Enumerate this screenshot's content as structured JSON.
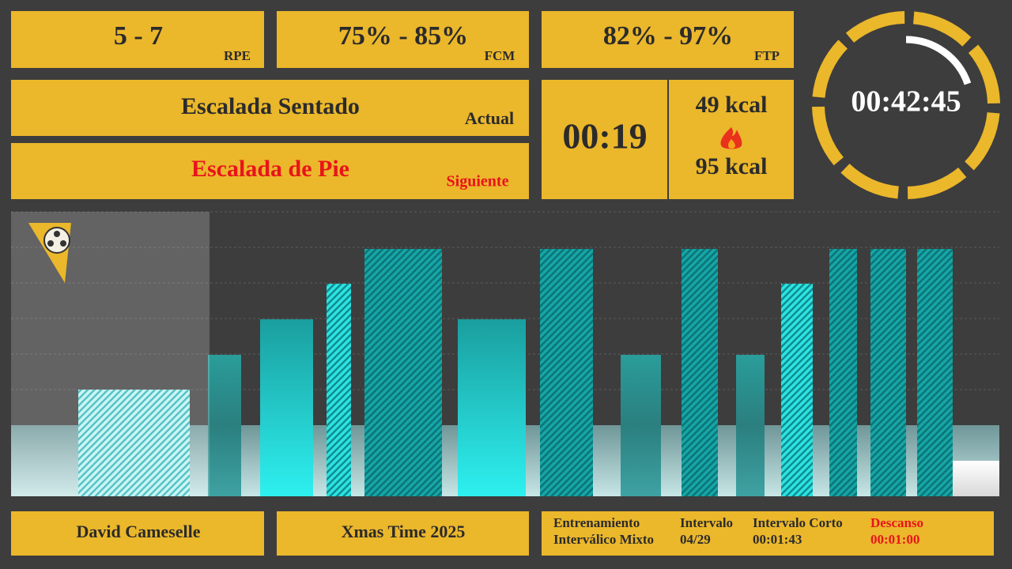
{
  "targets": [
    {
      "value": "5 - 7",
      "label": "RPE"
    },
    {
      "value": "75% - 85%",
      "label": "FCM"
    },
    {
      "value": "82% - 97%",
      "label": "FTP"
    }
  ],
  "current": {
    "name": "Escalada Sentado",
    "label": "Actual"
  },
  "next": {
    "name": "Escalada de Pie",
    "label": "Siguiente"
  },
  "interval_time": "00:19",
  "calories": {
    "current": "49 kcal",
    "target": "95 kcal"
  },
  "total_time": "00:42:45",
  "footer": {
    "athlete": "David Cameselle",
    "session": "Xmas Time 2025",
    "workout": [
      "Entrenamiento",
      "Interválico Mixto"
    ],
    "interval": {
      "label": "Intervalo",
      "value": "04/29"
    },
    "next_interval": {
      "label": "Intervalo Corto",
      "value": "00:01:43"
    },
    "rest": {
      "label": "Descanso",
      "value": "00:01:00"
    }
  }
}
